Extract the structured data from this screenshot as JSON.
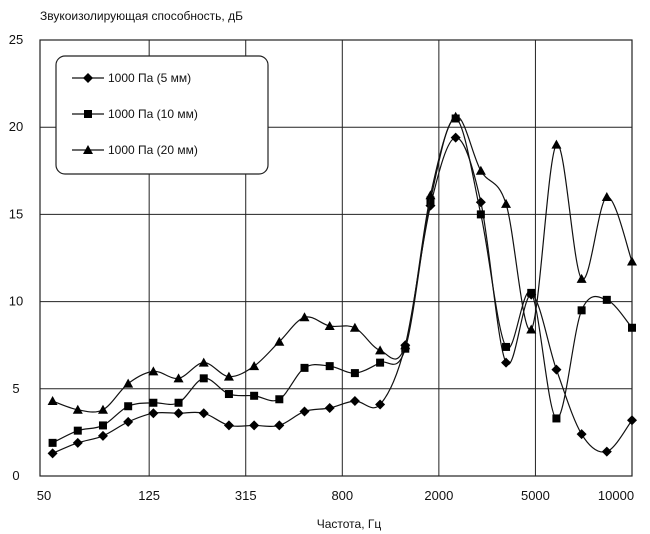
{
  "chart_data": {
    "type": "line",
    "ylabel": "Звукоизолирующая способность, дБ",
    "xlabel": "Частота, Гц",
    "ylim": [
      0,
      25
    ],
    "yticks": [
      "0",
      "5",
      "10",
      "15",
      "20",
      "25"
    ],
    "xtick_labels": [
      "50",
      "125",
      "315",
      "800",
      "2000",
      "5000",
      "10000"
    ],
    "grid": true,
    "legend_position": "top-left",
    "series": [
      {
        "name": "1000 Па (5 мм)",
        "marker": "diamond",
        "values": [
          1.3,
          1.9,
          2.3,
          3.1,
          3.6,
          3.6,
          3.6,
          2.9,
          2.9,
          2.9,
          3.7,
          3.9,
          4.3,
          4.1,
          7.5,
          15.5,
          19.4,
          15.7,
          6.5,
          10.4,
          6.1,
          2.4,
          1.4,
          3.2
        ]
      },
      {
        "name": "1000 Па (10 мм)",
        "marker": "square",
        "values": [
          1.9,
          2.6,
          2.9,
          4.0,
          4.2,
          4.2,
          5.6,
          4.7,
          4.6,
          4.4,
          6.2,
          6.3,
          5.9,
          6.5,
          7.3,
          15.8,
          20.5,
          15.0,
          7.4,
          10.5,
          3.3,
          9.5,
          10.1,
          8.5
        ]
      },
      {
        "name": "1000 Па (20 мм)",
        "marker": "triangle",
        "values": [
          4.3,
          3.8,
          3.8,
          5.3,
          6.0,
          5.6,
          6.5,
          5.7,
          6.3,
          7.7,
          9.1,
          8.6,
          8.5,
          7.2,
          7.5,
          16.1,
          20.6,
          17.5,
          15.6,
          8.4,
          19.0,
          11.3,
          16.0,
          12.3
        ]
      }
    ]
  }
}
